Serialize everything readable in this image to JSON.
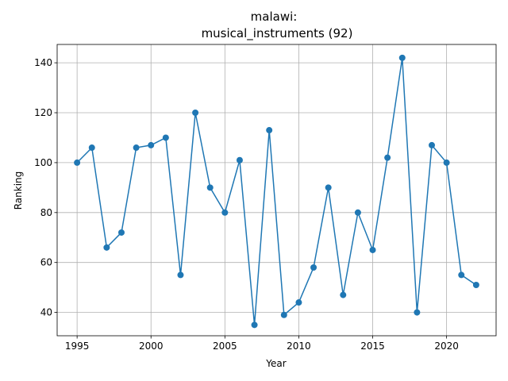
{
  "chart_data": {
    "type": "line",
    "title_line1": "malawi:",
    "title_line2": "musical_instruments (92)",
    "xlabel": "Year",
    "ylabel": "Ranking",
    "xlim": [
      1993.65,
      2023.35
    ],
    "ylim": [
      30.65,
      147.35
    ],
    "grid": true,
    "color": "#1f77b4",
    "x_ticks": [
      1995,
      2000,
      2005,
      2010,
      2015,
      2020
    ],
    "y_ticks": [
      40,
      60,
      80,
      100,
      120,
      140
    ],
    "series": [
      {
        "x": [
          1995,
          1996,
          1997,
          1998,
          1999,
          2000,
          2001,
          2002,
          2003,
          2004,
          2005,
          2006,
          2007,
          2008,
          2009,
          2010,
          2011,
          2012,
          2013,
          2014,
          2015,
          2016,
          2017,
          2018,
          2019,
          2020,
          2021,
          2022
        ],
        "y": [
          100,
          106,
          66,
          72,
          106,
          107,
          110,
          55,
          120,
          90,
          80,
          101,
          35,
          113,
          39,
          44,
          58,
          90,
          47,
          80,
          65,
          102,
          142,
          40,
          107,
          100,
          55,
          51
        ]
      }
    ]
  }
}
